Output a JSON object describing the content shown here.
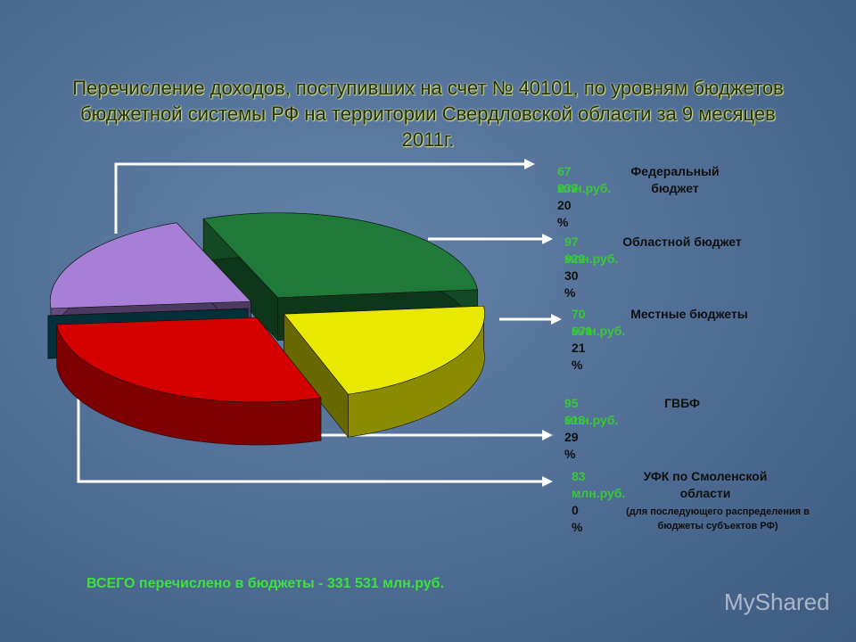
{
  "chart_data": {
    "type": "pie",
    "title": "Перечисление доходов, поступивших на счет № 40101, по уровням бюджетов бюджетной системы РФ на территории Свердловской области за 9 месяцев 2011г.",
    "categories": [
      "Федеральный бюджет",
      "Областной бюджет",
      "Местные бюджеты",
      "ГВБФ",
      "УФК по Смоленской области"
    ],
    "values": [
      67237,
      97922,
      70671,
      95618,
      83
    ],
    "value_labels": [
      "67 237",
      "97 922",
      "70 671",
      "95 618",
      "83"
    ],
    "unit": "млн.руб.",
    "percents": [
      20,
      30,
      21,
      29,
      0
    ],
    "percent_labels": [
      "20 %",
      "30 %",
      "21 %",
      "29 %",
      "0 %"
    ],
    "colors": [
      "#a77fd6",
      "#1f7a3a",
      "#e8e800",
      "#d40000",
      "#0a6a80"
    ],
    "note": "(для последующего распределения в бюджеты субъектов РФ)",
    "total": "ВСЕГО перечислено в бюджеты -  331 531 млн.руб.",
    "watermark": "MyShared"
  }
}
